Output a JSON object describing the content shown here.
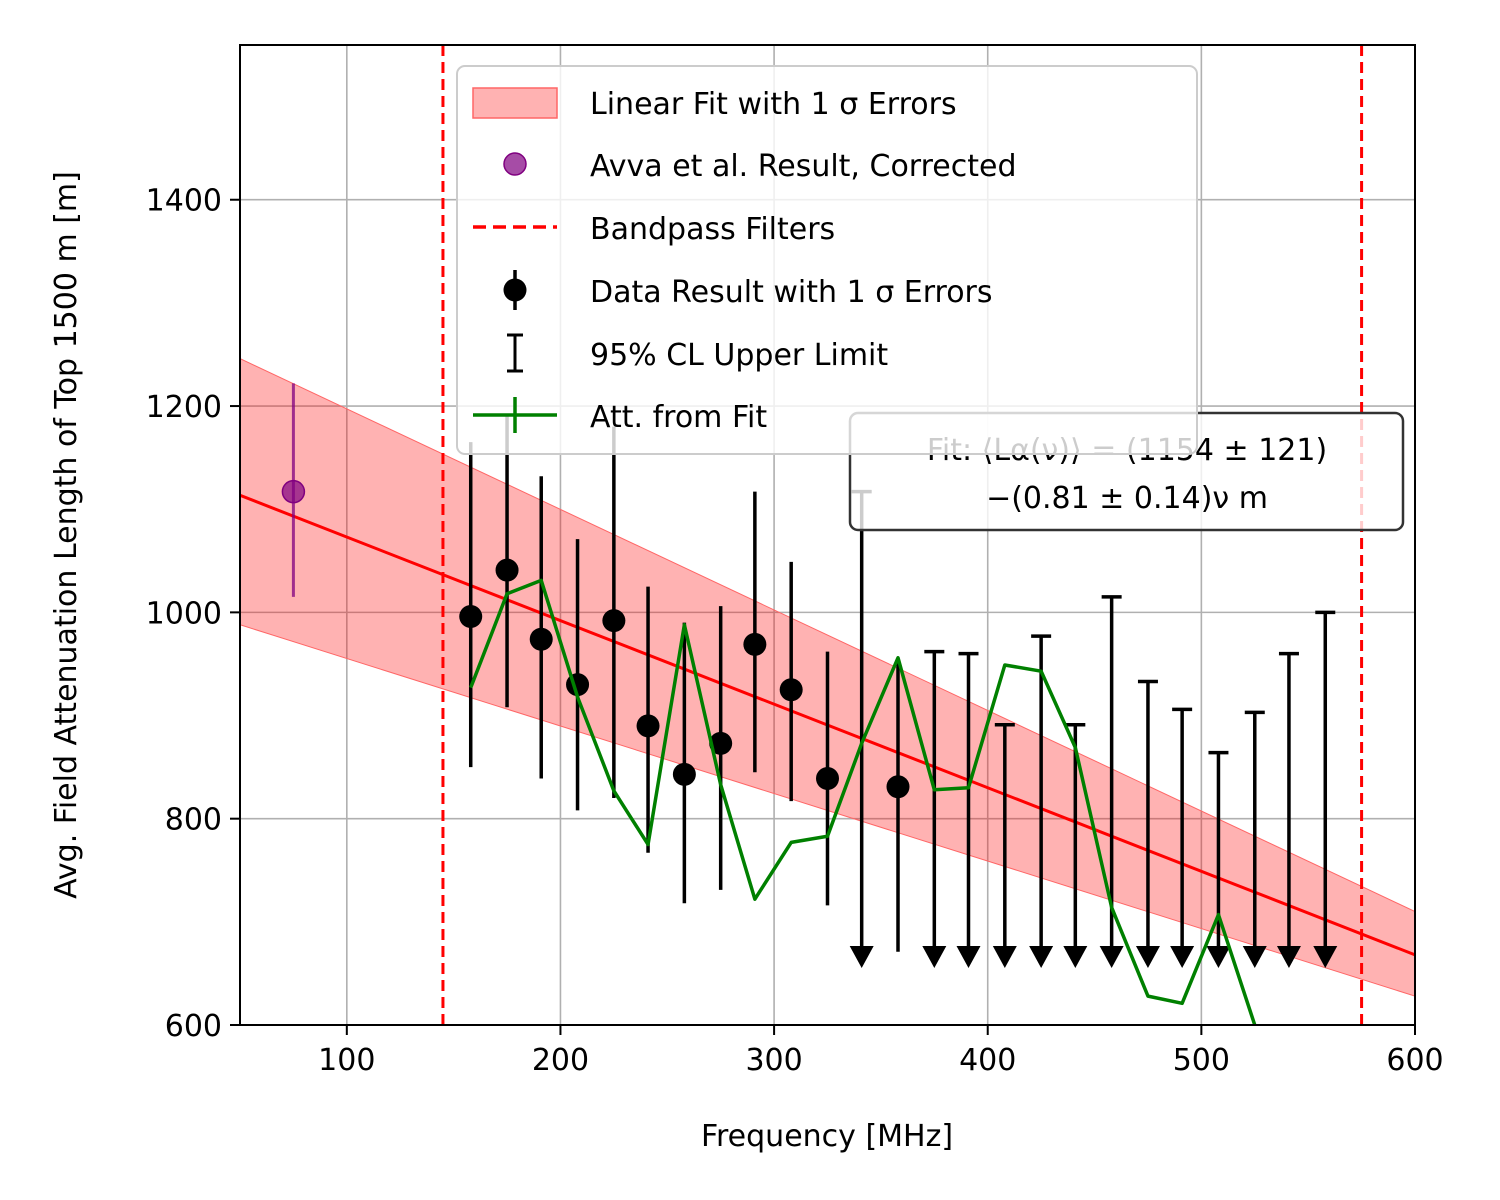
{
  "chart_data": {
    "type": "scatter",
    "xlabel": "Frequency [MHz]",
    "ylabel": "Avg. Field Attenuation Length of Top 1500 m [m]",
    "xlim": [
      50,
      600
    ],
    "ylim": [
      600,
      1550
    ],
    "x_ticks": [
      100,
      200,
      300,
      400,
      500,
      600
    ],
    "y_ticks": [
      600,
      800,
      1000,
      1200,
      1400
    ],
    "grid": true,
    "legend_position": "top-center",
    "legend": [
      {
        "label": "Linear Fit with 1 σ Errors",
        "kind": "band",
        "color": "#ff9999"
      },
      {
        "label": "Avva et al. Result, Corrected",
        "kind": "marker",
        "color": "#800080"
      },
      {
        "label": "Bandpass Filters",
        "kind": "dashed",
        "color": "#ff0000"
      },
      {
        "label": "Data Result with 1 σ Errors",
        "kind": "errorbar",
        "color": "#000000"
      },
      {
        "label": "95% CL Upper Limit",
        "kind": "limit",
        "color": "#000000"
      },
      {
        "label": "Att. from Fit",
        "kind": "line",
        "color": "#008000"
      }
    ],
    "annotation": {
      "line1": "Fit: ⟨Lα(ν)⟩ = (1154 ± 121)",
      "line2": "−(0.81 ± 0.14)ν m"
    },
    "fit": {
      "intercept": 1154,
      "slope": -0.81,
      "band_low": [
        988,
        628
      ],
      "band_high": [
        1246,
        710
      ],
      "band_x": [
        50,
        600
      ]
    },
    "bandpass_filters": [
      145,
      575
    ],
    "avva": {
      "x": 75,
      "y": 1117,
      "yerr_low": 1015,
      "yerr_high": 1222
    },
    "data_points": [
      {
        "x": 158,
        "y": 996,
        "low": 850,
        "high": 1165
      },
      {
        "x": 175,
        "y": 1041,
        "low": 908,
        "high": 1190
      },
      {
        "x": 191,
        "y": 974,
        "low": 839,
        "high": 1132
      },
      {
        "x": 208,
        "y": 930,
        "low": 808,
        "high": 1071
      },
      {
        "x": 225,
        "y": 992,
        "low": 820,
        "high": 1180
      },
      {
        "x": 241,
        "y": 890,
        "low": 767,
        "high": 1025
      },
      {
        "x": 258,
        "y": 843,
        "low": 718,
        "high": 990
      },
      {
        "x": 275,
        "y": 873,
        "low": 731,
        "high": 1006
      },
      {
        "x": 291,
        "y": 969,
        "low": 845,
        "high": 1117
      },
      {
        "x": 308,
        "y": 925,
        "low": 817,
        "high": 1049
      },
      {
        "x": 325,
        "y": 839,
        "low": 716,
        "high": 962
      },
      {
        "x": 358,
        "y": 831,
        "low": 671,
        "high": 955
      }
    ],
    "upper_limits": [
      {
        "x": 341,
        "y": 1117
      },
      {
        "x": 375,
        "y": 962
      },
      {
        "x": 391,
        "y": 960
      },
      {
        "x": 408,
        "y": 891
      },
      {
        "x": 425,
        "y": 977
      },
      {
        "x": 441,
        "y": 891
      },
      {
        "x": 458,
        "y": 1015
      },
      {
        "x": 475,
        "y": 933
      },
      {
        "x": 491,
        "y": 906
      },
      {
        "x": 508,
        "y": 864
      },
      {
        "x": 525,
        "y": 903
      },
      {
        "x": 541,
        "y": 960
      },
      {
        "x": 558,
        "y": 1000
      }
    ],
    "limit_arrow_y": 665,
    "att_from_fit": {
      "x": [
        158,
        175,
        191,
        208,
        225,
        241,
        258,
        275,
        291,
        308,
        325,
        341,
        358,
        375,
        391,
        408,
        425,
        441,
        458,
        475,
        491,
        508,
        525
      ],
      "y": [
        927,
        1018,
        1031,
        918,
        827,
        775,
        988,
        833,
        722,
        777,
        783,
        873,
        956,
        828,
        830,
        949,
        943,
        869,
        714,
        628,
        621,
        707,
        600
      ]
    }
  }
}
